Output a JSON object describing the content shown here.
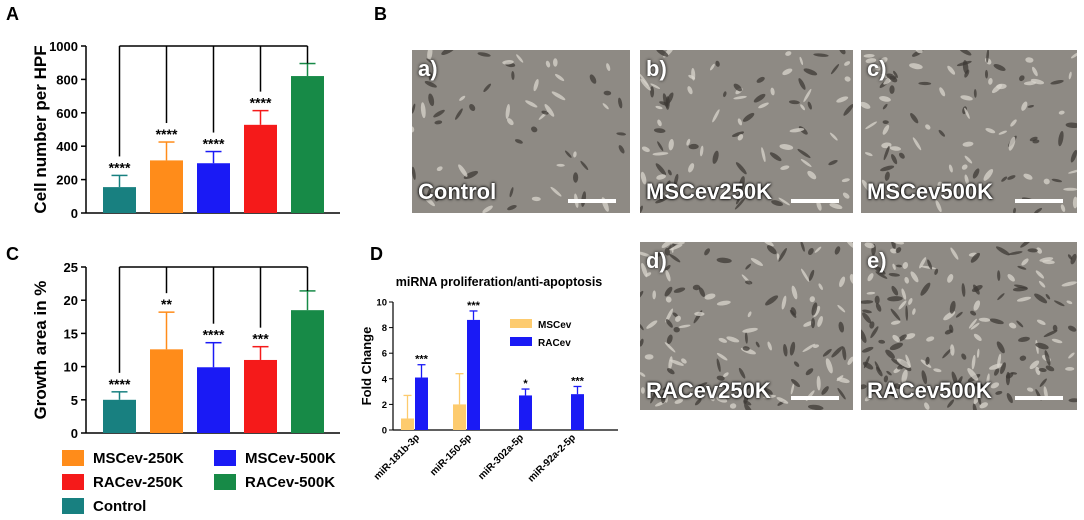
{
  "panels": {
    "A": "A",
    "B": "B",
    "C": "C",
    "D": "D"
  },
  "colors": {
    "control": "#188080",
    "msc250": "#FF8C1A",
    "msc500": "#1A1AF5",
    "rac250": "#F51A1A",
    "rac500": "#178A47",
    "mscev_d": "#FDCB6E",
    "racev_d": "#1A1AF5"
  },
  "chart_data": [
    {
      "panel": "A",
      "type": "bar",
      "ylabel": "Cell number per HPF",
      "ylim": [
        0,
        1000
      ],
      "yticks": [
        0,
        200,
        400,
        600,
        800,
        1000
      ],
      "categories": [
        "Control",
        "MSCev-250K",
        "MSCev-500K",
        "RACev-250K",
        "RACev-500K"
      ],
      "values": [
        155,
        315,
        298,
        528,
        820
      ],
      "errors": [
        70,
        110,
        70,
        85,
        75
      ],
      "significance": [
        "****",
        "****",
        "****",
        "****",
        ""
      ],
      "colors": [
        "#188080",
        "#FF8C1A",
        "#1A1AF5",
        "#F51A1A",
        "#178A47"
      ]
    },
    {
      "panel": "C",
      "type": "bar",
      "ylabel": "Growth area in %",
      "ylim": [
        0,
        25
      ],
      "yticks": [
        0,
        5,
        10,
        15,
        20,
        25
      ],
      "categories": [
        "Control",
        "MSCev-250K",
        "MSCev-500K",
        "RACev-250K",
        "RACev-500K"
      ],
      "values": [
        5,
        12.6,
        9.9,
        11,
        18.5
      ],
      "errors": [
        1.2,
        5.6,
        3.7,
        2,
        2.9
      ],
      "significance": [
        "****",
        "**",
        "****",
        "***",
        ""
      ],
      "colors": [
        "#188080",
        "#FF8C1A",
        "#1A1AF5",
        "#F51A1A",
        "#178A47"
      ]
    },
    {
      "panel": "D",
      "type": "bar",
      "title": "miRNA proliferation/anti-apoptosis",
      "ylabel": "Fold Change",
      "ylim": [
        0,
        10
      ],
      "yticks": [
        0,
        2,
        4,
        6,
        8,
        10
      ],
      "categories": [
        "miR-181b-3p",
        "miR-150-5p",
        "miR-302a-5p",
        "miR-92a-2-5p"
      ],
      "series": [
        {
          "name": "MSCev",
          "values": [
            0.9,
            2.0,
            0,
            0
          ],
          "errors": [
            1.8,
            2.4,
            0,
            0
          ],
          "color": "#FDCB6E"
        },
        {
          "name": "RACev",
          "values": [
            4.1,
            8.6,
            2.7,
            2.8
          ],
          "errors": [
            1.0,
            0.7,
            0.5,
            0.6
          ],
          "color": "#1A1AF5"
        }
      ],
      "significance": [
        "***",
        "***",
        "*",
        "***"
      ]
    }
  ],
  "legend": [
    {
      "label": "MSCev-250K",
      "color": "#FF8C1A"
    },
    {
      "label": "MSCev-500K",
      "color": "#1A1AF5"
    },
    {
      "label": "RACev-250K",
      "color": "#F51A1A"
    },
    {
      "label": "RACev-500K",
      "color": "#178A47"
    },
    {
      "label": "Control",
      "color": "#188080"
    }
  ],
  "micrographs": [
    {
      "tag": "a)",
      "label": "Control"
    },
    {
      "tag": "b)",
      "label": "MSCev250K"
    },
    {
      "tag": "c)",
      "label": "MSCev500K"
    },
    {
      "tag": "d)",
      "label": "RACev250K"
    },
    {
      "tag": "e)",
      "label": "RACev500K"
    }
  ]
}
